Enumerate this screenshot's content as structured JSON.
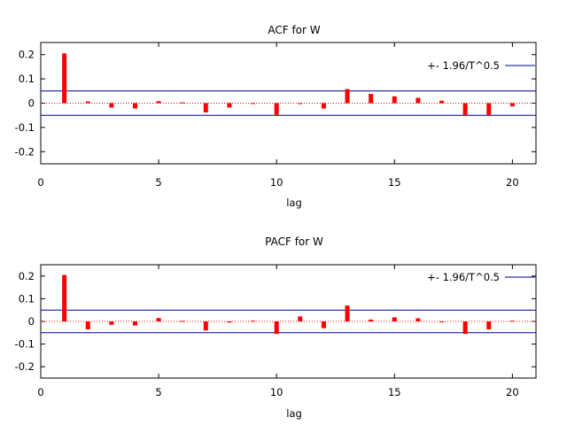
{
  "colors": {
    "bar": "#ff0000",
    "band": "#00008b",
    "zero": "#ff0000",
    "axis": "#000000"
  },
  "chart_data": [
    {
      "type": "bar",
      "title": "ACF for W",
      "xlabel": "lag",
      "ylabel": "",
      "xlim": [
        0,
        21
      ],
      "ylim": [
        -0.25,
        0.25
      ],
      "xticks": [
        "0",
        "5",
        "10",
        "15",
        "20"
      ],
      "yticks": [
        "0.2",
        "0.1",
        "0",
        "-0.1",
        "-0.2"
      ],
      "legend": {
        "label": "+- 1.96/T^0.5",
        "position": "top-right"
      },
      "band": 0.05,
      "lags": [
        1,
        2,
        3,
        4,
        5,
        6,
        7,
        8,
        9,
        10,
        11,
        12,
        13,
        14,
        15,
        16,
        17,
        18,
        19,
        20
      ],
      "values": [
        0.205,
        0.007,
        -0.018,
        -0.022,
        0.008,
        0.003,
        -0.038,
        -0.018,
        -0.002,
        -0.048,
        -0.003,
        -0.022,
        0.058,
        0.038,
        0.028,
        0.022,
        0.01,
        -0.05,
        -0.05,
        -0.013
      ]
    },
    {
      "type": "bar",
      "title": "PACF for W",
      "xlabel": "lag",
      "ylabel": "",
      "xlim": [
        0,
        21
      ],
      "ylim": [
        -0.25,
        0.25
      ],
      "xticks": [
        "0",
        "5",
        "10",
        "15",
        "20"
      ],
      "yticks": [
        "0.2",
        "0.1",
        "0",
        "-0.1",
        "-0.2"
      ],
      "legend": {
        "label": "+- 1.96/T^0.5",
        "position": "top-right"
      },
      "band": 0.05,
      "lags": [
        1,
        2,
        3,
        4,
        5,
        6,
        7,
        8,
        9,
        10,
        11,
        12,
        13,
        14,
        15,
        16,
        17,
        18,
        19,
        20
      ],
      "values": [
        0.205,
        -0.035,
        -0.015,
        -0.018,
        0.015,
        0.002,
        -0.04,
        -0.005,
        0.003,
        -0.055,
        0.022,
        -0.03,
        0.07,
        0.008,
        0.018,
        0.014,
        -0.003,
        -0.055,
        -0.035,
        0.003
      ]
    }
  ]
}
